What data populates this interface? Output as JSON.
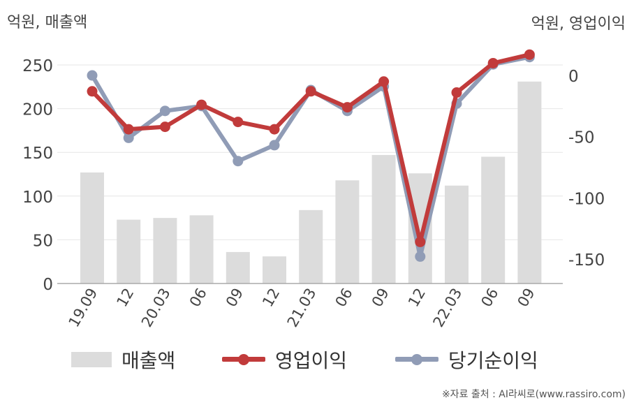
{
  "header": {
    "left_unit": "억원, 매출액",
    "right_unit": "억원, 영업이익"
  },
  "footer": {
    "source": "※자료 출처 : AI라씨로(www.rassiro.com)"
  },
  "legend": {
    "items": [
      {
        "label": "매출액",
        "color": "#dcdcdc"
      },
      {
        "label": "영업이익",
        "color": "#c13b3b"
      },
      {
        "label": "당기순이익",
        "color": "#909cb6"
      }
    ]
  },
  "chart_data": {
    "type": "bar",
    "categories": [
      "19.09",
      "12",
      "20.03",
      "06",
      "09",
      "12",
      "21.03",
      "06",
      "09",
      "12",
      "22.03",
      "06",
      "09"
    ],
    "y_left": {
      "label": "억원, 매출액",
      "ylim": [
        0,
        250
      ],
      "ticks": [
        0,
        50,
        100,
        150,
        200,
        250
      ]
    },
    "y_right": {
      "label": "억원, 영업이익",
      "ylim": [
        -170,
        0
      ],
      "ticks": [
        0,
        -50,
        -100,
        -150
      ]
    },
    "series": [
      {
        "name": "매출액",
        "type": "bar",
        "axis": "left",
        "color": "#dcdcdc",
        "values": [
          127,
          73,
          75,
          78,
          36,
          31,
          84,
          118,
          147,
          126,
          112,
          145,
          231
        ]
      },
      {
        "name": "영업이익",
        "type": "line",
        "axis": "right",
        "color": "#c13b3b",
        "values": [
          -13,
          -44,
          -42,
          -24,
          -38,
          -44,
          -13,
          -26,
          -5,
          -136,
          -14,
          10,
          17
        ]
      },
      {
        "name": "당기순이익",
        "type": "line",
        "axis": "right",
        "color": "#909cb6",
        "values": [
          0,
          -51,
          -29,
          -25,
          -70,
          -57,
          -12,
          -29,
          -9,
          -148,
          -23,
          9,
          15
        ]
      }
    ],
    "grid": true,
    "legend_position": "bottom"
  }
}
